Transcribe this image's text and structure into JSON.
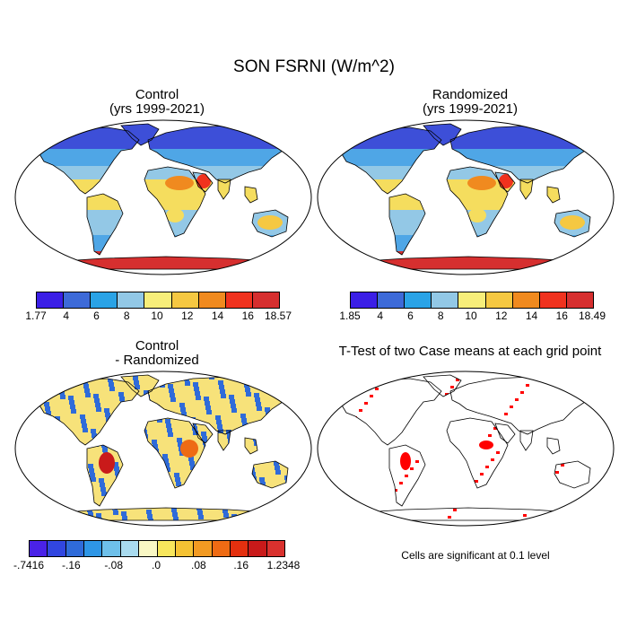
{
  "title": "SON FSRNI (W/m^2)",
  "panels": {
    "control": {
      "title_line1": "Control",
      "title_line2": "(yrs 1999-2021)"
    },
    "randomized": {
      "title_line1": "Randomized",
      "title_line2": "(yrs 1999-2021)"
    },
    "difference": {
      "title_line1": "Control",
      "title_line2": "- Randomized"
    },
    "ttest": {
      "title_line1": "T-Test of two Case means at each grid point",
      "note": "Cells are significant at 0.1 level"
    }
  },
  "colorbars": {
    "control": {
      "labels": [
        "1.77",
        "4",
        "6",
        "8",
        "10",
        "12",
        "14",
        "16",
        "18.57"
      ],
      "colors": [
        "#3b1fe6",
        "#3d6ad8",
        "#2aa3e6",
        "#92c8e6",
        "#f7ee7a",
        "#f5c842",
        "#f08a1f",
        "#f0321e",
        "#d62f2f"
      ]
    },
    "randomized": {
      "labels": [
        "1.85",
        "4",
        "6",
        "8",
        "10",
        "12",
        "14",
        "16",
        "18.49"
      ],
      "colors": [
        "#3b1fe6",
        "#3d6ad8",
        "#2aa3e6",
        "#92c8e6",
        "#f7ee7a",
        "#f5c842",
        "#f08a1f",
        "#f0321e",
        "#d62f2f"
      ]
    },
    "difference": {
      "labels": [
        "-.7416",
        "-.16",
        "-.08",
        ".0",
        ".08",
        ".16",
        "1.2348"
      ],
      "colors": [
        "#4a22e8",
        "#3146e0",
        "#2f6bd9",
        "#2e96e6",
        "#6ec0ea",
        "#a9dbef",
        "#f9f7c4",
        "#f7e65c",
        "#f4c233",
        "#f29a22",
        "#ee6b14",
        "#e4300f",
        "#c91a1a",
        "#d9312e"
      ]
    },
    "ttest": {
      "significant_color": "#ff0000"
    }
  }
}
